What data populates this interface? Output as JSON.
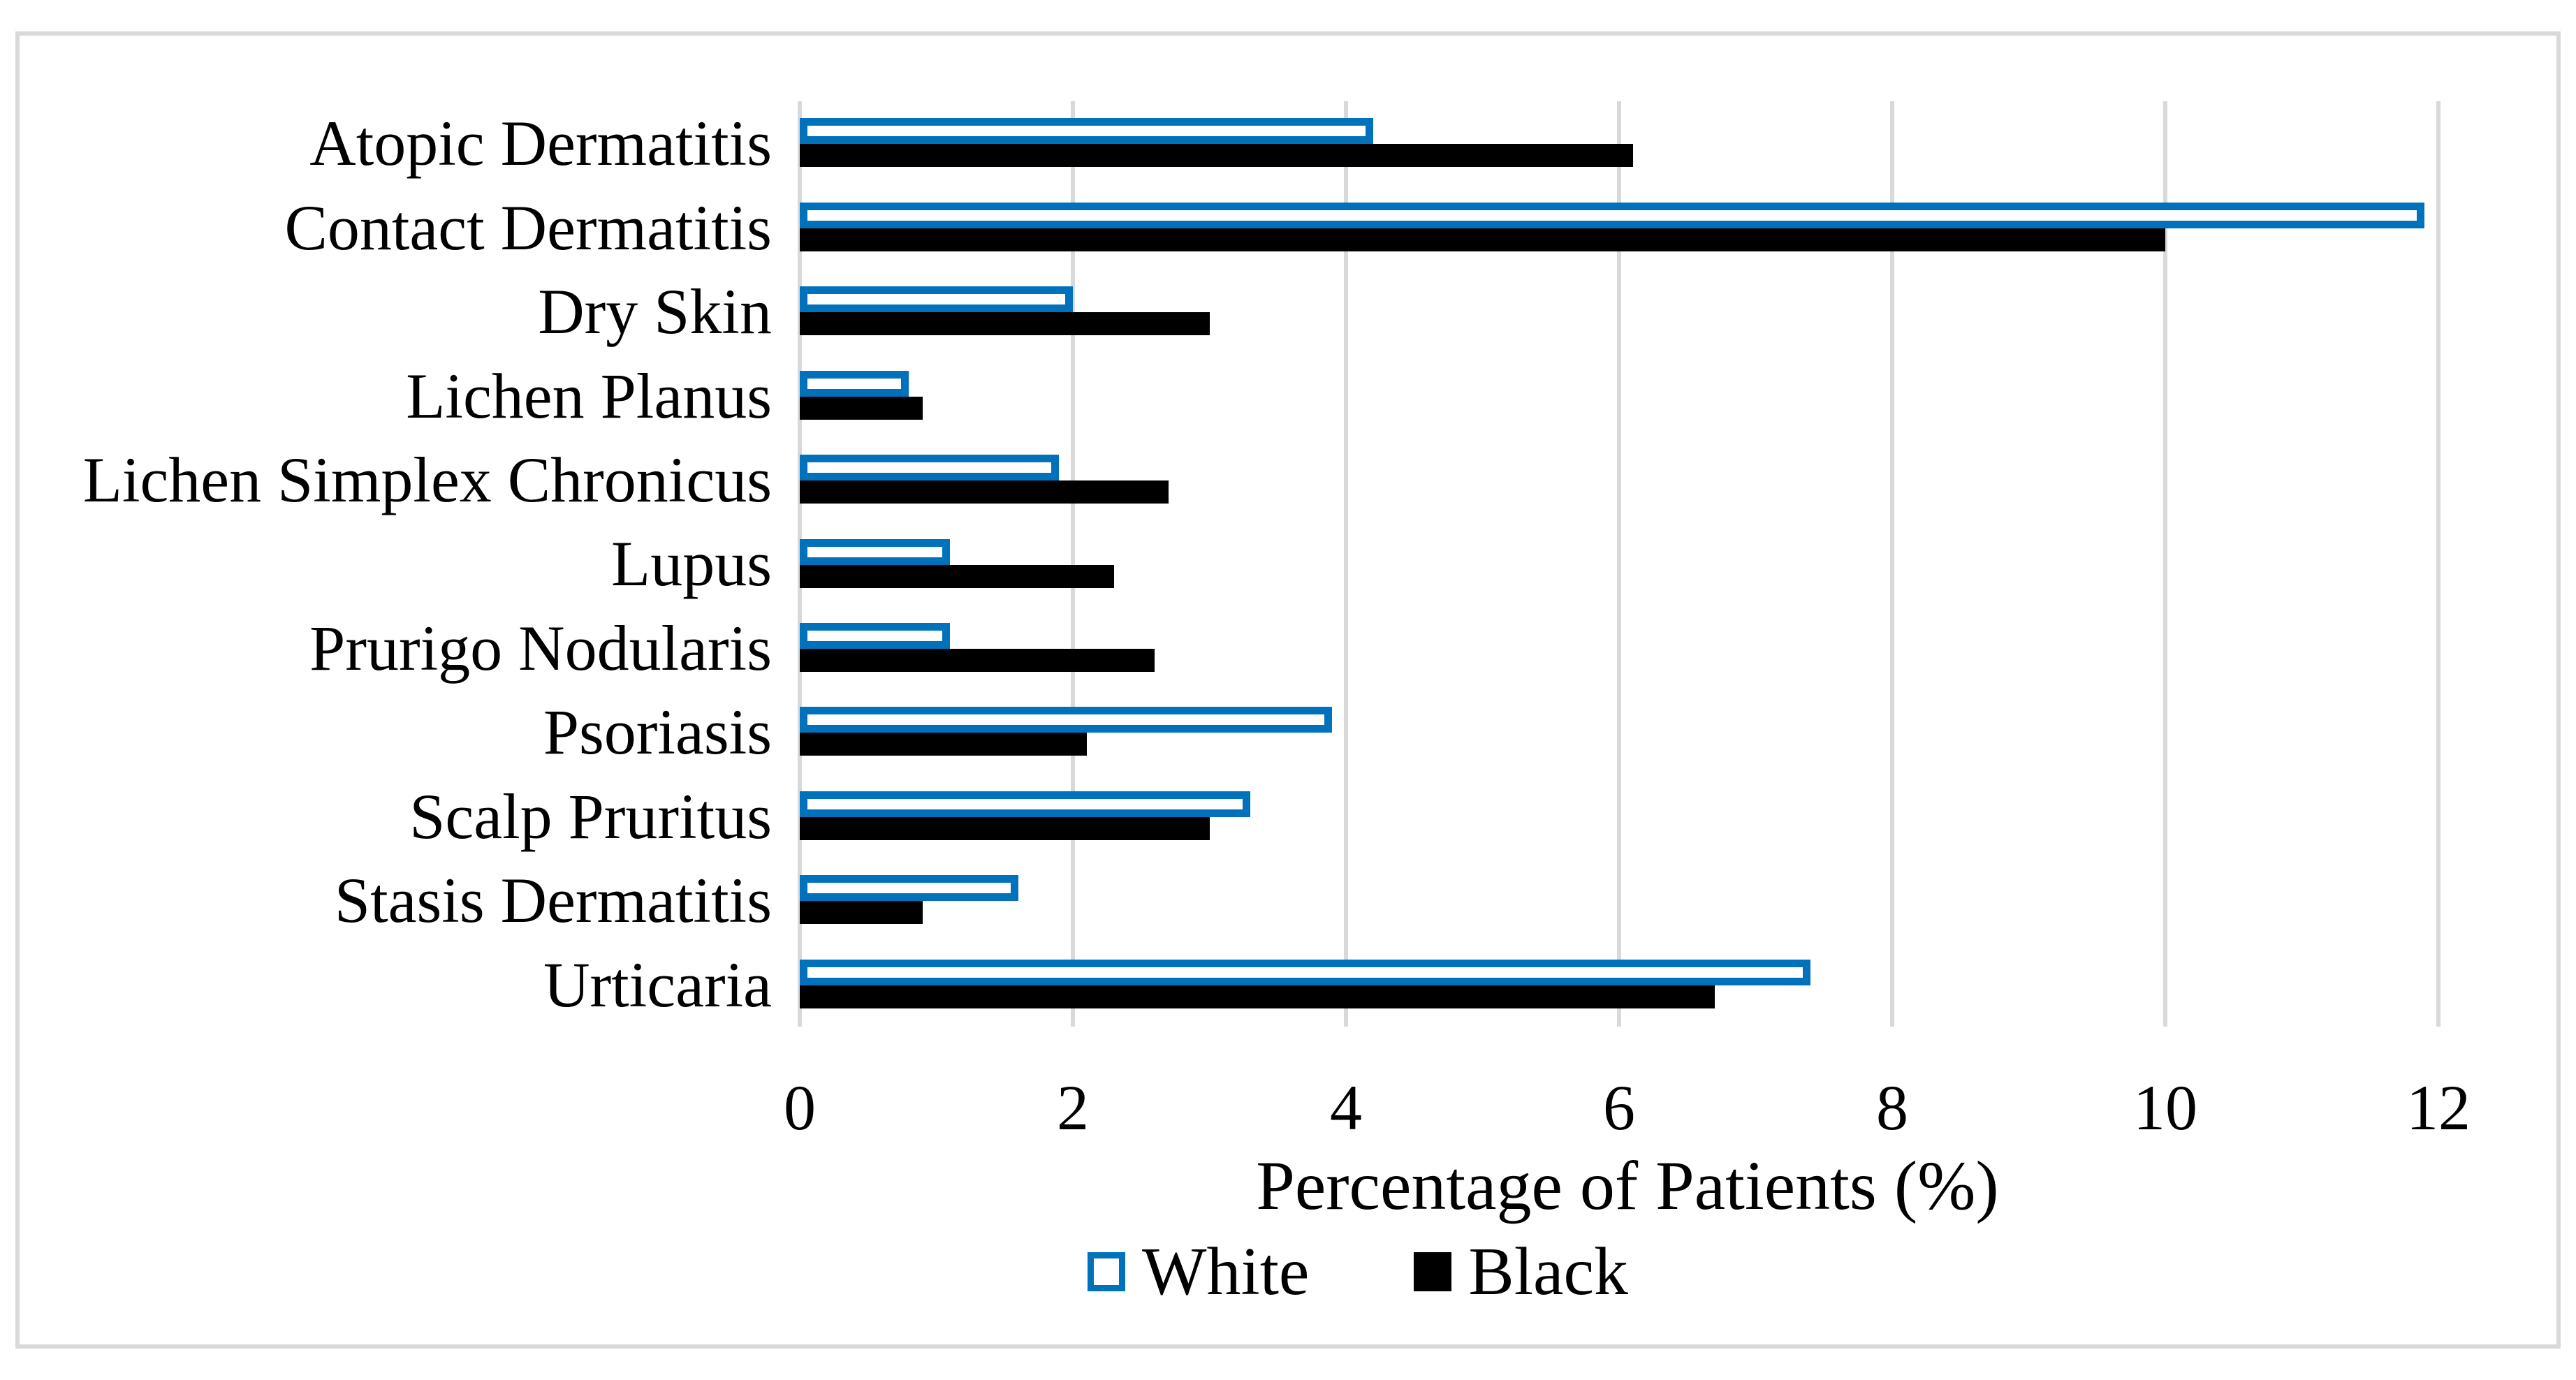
{
  "chart_data": {
    "type": "bar",
    "orientation": "horizontal",
    "title": "",
    "xlabel": "Percentage of Patients (%)",
    "ylabel": "",
    "xlim": [
      0,
      12
    ],
    "xticks": [
      0,
      2,
      4,
      6,
      8,
      10,
      12
    ],
    "grid": true,
    "legend_position": "bottom",
    "categories": [
      "Atopic Dermatitis",
      "Contact Dermatitis",
      "Dry Skin",
      "Lichen Planus",
      "Lichen Simplex Chronicus",
      "Lupus",
      "Prurigo Nodularis",
      "Psoriasis",
      "Scalp Pruritus",
      "Stasis Dermatitis",
      "Urticaria"
    ],
    "series": [
      {
        "name": "White",
        "fill_color": "#FFFFFF",
        "border_color": "#0072BC",
        "values": [
          4.2,
          11.9,
          2.0,
          0.8,
          1.9,
          1.1,
          1.1,
          3.9,
          3.3,
          1.6,
          7.4
        ]
      },
      {
        "name": "Black",
        "fill_color": "#000000",
        "border_color": "#000000",
        "values": [
          6.1,
          10.0,
          3.0,
          0.9,
          2.7,
          2.3,
          2.6,
          2.1,
          3.0,
          0.9,
          6.7
        ]
      }
    ]
  },
  "colors": {
    "gridline": "#D9D9D9",
    "figure_border": "#D9D9D9",
    "text": "#000000",
    "background": "#FFFFFF"
  }
}
